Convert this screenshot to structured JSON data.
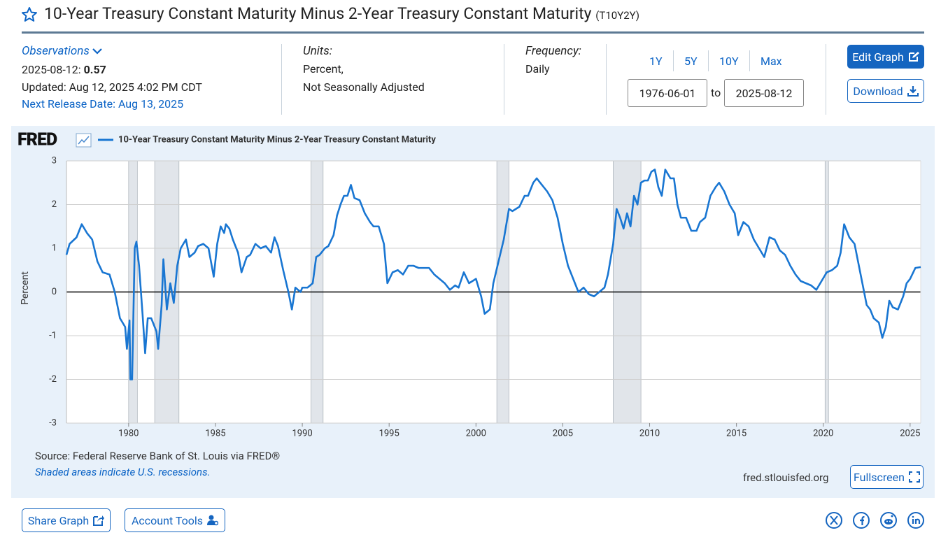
{
  "header": {
    "title": "10-Year Treasury Constant Maturity Minus 2-Year Treasury Constant Maturity",
    "series_id": "(T10Y2Y)"
  },
  "observations": {
    "label": "Observations",
    "date": "2025-08-12:",
    "value": 0.57,
    "updated": "Updated: Aug 12, 2025 4:02 PM CDT",
    "next_release": "Next Release Date: Aug 13, 2025"
  },
  "units": {
    "label": "Units:",
    "lines": [
      "Percent,",
      "Not Seasonally Adjusted"
    ]
  },
  "frequency": {
    "label": "Frequency:",
    "value": "Daily"
  },
  "ranges": [
    "1Y",
    "5Y",
    "10Y",
    "Max"
  ],
  "date_range": {
    "start": "1976-06-01",
    "separator": "to",
    "end": "2025-08-12"
  },
  "buttons": {
    "edit": "Edit Graph",
    "download": "Download",
    "fullscreen": "Fullscreen",
    "share": "Share Graph",
    "account": "Account Tools"
  },
  "footer": {
    "source": "Source: Federal Reserve Bank of St. Louis via FRED®",
    "note": "Shaded areas indicate U.S. recessions.",
    "url": "fred.stlouisfed.org"
  },
  "chart_data": {
    "type": "line",
    "logo": "FRED",
    "ylabel": "Percent",
    "xlim": [
      1976.42,
      2025.61
    ],
    "xticks": [
      1980,
      1985,
      1990,
      1995,
      2000,
      2005,
      2010,
      2015,
      2020,
      2025
    ],
    "ylim": [
      -3,
      3
    ],
    "yticks": [
      -3,
      -2,
      -1,
      0,
      1,
      2,
      3
    ],
    "grid": true,
    "recessions": [
      {
        "start": 1980.0,
        "end": 1980.5
      },
      {
        "start": 1981.5,
        "end": 1982.9
      },
      {
        "start": 1990.5,
        "end": 1991.2
      },
      {
        "start": 2001.2,
        "end": 2001.9
      },
      {
        "start": 2007.9,
        "end": 2009.5
      },
      {
        "start": 2020.1,
        "end": 2020.3
      }
    ],
    "x": [
      1976.42,
      1976.6,
      1977.0,
      1977.3,
      1977.6,
      1977.9,
      1978.2,
      1978.5,
      1978.9,
      1979.2,
      1979.5,
      1979.8,
      1979.9,
      1980.05,
      1980.1,
      1980.2,
      1980.35,
      1980.45,
      1980.6,
      1980.8,
      1980.95,
      1981.1,
      1981.3,
      1981.6,
      1981.7,
      1981.9,
      1982.0,
      1982.2,
      1982.4,
      1982.6,
      1982.8,
      1983.0,
      1983.3,
      1983.5,
      1983.8,
      1984.0,
      1984.3,
      1984.6,
      1984.9,
      1985.1,
      1985.3,
      1985.5,
      1985.6,
      1985.8,
      1986.0,
      1986.3,
      1986.5,
      1986.8,
      1987.0,
      1987.3,
      1987.6,
      1987.9,
      1988.2,
      1988.4,
      1988.6,
      1988.9,
      1989.2,
      1989.4,
      1989.6,
      1989.9,
      1990.0,
      1990.3,
      1990.6,
      1990.8,
      1991.0,
      1991.3,
      1991.5,
      1991.8,
      1992.0,
      1992.2,
      1992.4,
      1992.6,
      1992.8,
      1993.0,
      1993.3,
      1993.6,
      1993.9,
      1994.1,
      1994.4,
      1994.7,
      1994.9,
      1995.2,
      1995.5,
      1995.8,
      1996.1,
      1996.4,
      1996.7,
      1997.0,
      1997.3,
      1997.6,
      1997.9,
      1998.2,
      1998.5,
      1998.8,
      1999.0,
      1999.3,
      1999.6,
      2000.0,
      2000.3,
      2000.5,
      2000.8,
      2001.0,
      2001.3,
      2001.6,
      2001.9,
      2002.1,
      2002.3,
      2002.5,
      2002.8,
      2003.0,
      2003.3,
      2003.5,
      2003.8,
      2004.1,
      2004.4,
      2004.7,
      2005.0,
      2005.3,
      2005.6,
      2005.9,
      2006.2,
      2006.5,
      2006.8,
      2007.1,
      2007.4,
      2007.6,
      2007.9,
      2008.1,
      2008.3,
      2008.5,
      2008.7,
      2008.9,
      2009.1,
      2009.3,
      2009.5,
      2009.7,
      2009.9,
      2010.1,
      2010.3,
      2010.5,
      2010.7,
      2010.9,
      2011.2,
      2011.4,
      2011.6,
      2011.8,
      2012.1,
      2012.4,
      2012.7,
      2012.9,
      2013.2,
      2013.5,
      2013.8,
      2014.0,
      2014.3,
      2014.6,
      2014.9,
      2015.1,
      2015.4,
      2015.7,
      2016.0,
      2016.3,
      2016.6,
      2016.9,
      2017.2,
      2017.5,
      2017.8,
      2018.1,
      2018.4,
      2018.7,
      2019.0,
      2019.3,
      2019.6,
      2019.9,
      2020.2,
      2020.5,
      2020.8,
      2021.0,
      2021.2,
      2021.5,
      2021.8,
      2022.1,
      2022.3,
      2022.5,
      2022.7,
      2022.9,
      2023.2,
      2023.4,
      2023.6,
      2023.8,
      2024.0,
      2024.3,
      2024.6,
      2024.8,
      2025.0,
      2025.3,
      2025.61
    ],
    "series": [
      {
        "name": "10-Year Treasury Constant Maturity Minus 2-Year Treasury Constant Maturity",
        "color": "#1976d2",
        "values": [
          0.85,
          1.1,
          1.25,
          1.55,
          1.35,
          1.2,
          0.7,
          0.45,
          0.4,
          0.0,
          -0.6,
          -0.8,
          -1.3,
          -0.65,
          -2.0,
          -2.0,
          1.0,
          1.15,
          0.6,
          -0.5,
          -1.4,
          -0.6,
          -0.6,
          -0.9,
          -1.3,
          -0.3,
          0.75,
          -0.4,
          0.2,
          -0.25,
          0.6,
          1.0,
          1.2,
          0.8,
          0.9,
          1.05,
          1.1,
          1.0,
          0.35,
          1.1,
          1.5,
          1.35,
          1.55,
          1.45,
          1.2,
          0.9,
          0.45,
          0.8,
          0.85,
          1.1,
          1.0,
          1.05,
          0.9,
          1.25,
          1.05,
          0.5,
          0.0,
          -0.4,
          0.1,
          0.0,
          0.1,
          0.1,
          0.2,
          0.8,
          0.85,
          1.0,
          1.05,
          1.3,
          1.75,
          2.0,
          2.2,
          2.2,
          2.45,
          2.15,
          2.1,
          1.8,
          1.6,
          1.5,
          1.5,
          1.1,
          0.2,
          0.45,
          0.5,
          0.4,
          0.6,
          0.6,
          0.55,
          0.55,
          0.55,
          0.4,
          0.3,
          0.2,
          0.05,
          0.15,
          0.1,
          0.45,
          0.2,
          0.3,
          -0.1,
          -0.5,
          -0.4,
          0.2,
          0.7,
          1.2,
          1.9,
          1.85,
          1.9,
          1.95,
          2.2,
          2.2,
          2.5,
          2.6,
          2.45,
          2.3,
          2.1,
          1.7,
          1.1,
          0.6,
          0.3,
          0.0,
          0.1,
          -0.05,
          -0.1,
          0.0,
          0.1,
          0.4,
          1.1,
          1.9,
          1.7,
          1.45,
          1.8,
          1.5,
          2.2,
          2.0,
          2.5,
          2.55,
          2.55,
          2.75,
          2.8,
          2.4,
          2.2,
          2.8,
          2.6,
          2.6,
          2.0,
          1.7,
          1.7,
          1.4,
          1.4,
          1.6,
          1.7,
          2.2,
          2.4,
          2.5,
          2.3,
          2.0,
          1.8,
          1.3,
          1.6,
          1.5,
          1.2,
          1.0,
          0.8,
          1.25,
          1.2,
          0.95,
          0.85,
          0.6,
          0.4,
          0.25,
          0.2,
          0.15,
          0.05,
          0.25,
          0.45,
          0.5,
          0.6,
          0.9,
          1.55,
          1.25,
          1.1,
          0.5,
          0.1,
          -0.3,
          -0.4,
          -0.6,
          -0.7,
          -1.05,
          -0.8,
          -0.2,
          -0.35,
          -0.4,
          -0.1,
          0.2,
          0.3,
          0.55,
          0.57
        ]
      }
    ]
  }
}
